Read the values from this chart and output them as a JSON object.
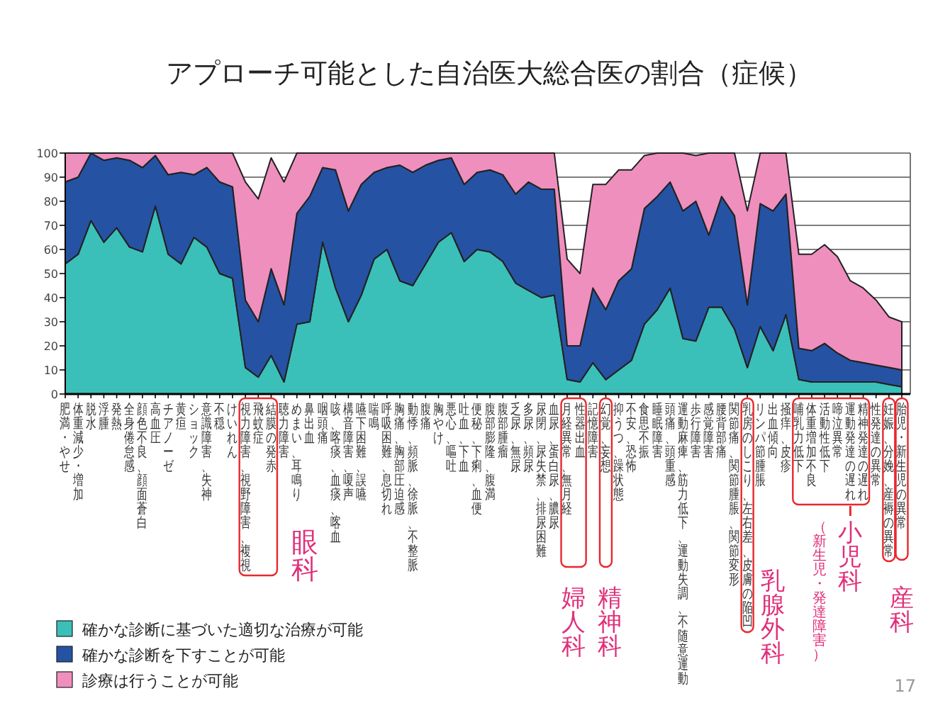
{
  "chart_data": {
    "type": "area",
    "title": "アプローチ可能とした自治医大総合医の割合（症候）",
    "stacked": true,
    "grid": "y",
    "legend": "bottom left",
    "ylim": [
      0,
      100
    ],
    "yticks": [
      0,
      10,
      20,
      30,
      40,
      50,
      60,
      70,
      80,
      90,
      100
    ],
    "categories": [
      "肥満・やせ",
      "体重減少・増加",
      "脱水",
      "浮腫",
      "発熱",
      "全身倦怠感",
      "顔色不良、顔面蒼白",
      "高血圧",
      "チアノーゼ",
      "黄疸",
      "ショック",
      "意識障害、失神",
      "不穏",
      "けいれん",
      "視力障害、視野障害、複視",
      "飛蚊症",
      "結膜の発赤",
      "聴力障害",
      "めまい、耳鳴り",
      "鼻出血",
      "咽頭痛",
      "咳、喀痰、血痰、喀血",
      "構音障害、嗄声",
      "嚥下困難、誤嚥",
      "喘鳴",
      "呼吸困難、息切れ",
      "胸痛、胸部圧迫感",
      "動悸、頻脈、徐脈、不整脈",
      "腹痛",
      "胸やけ",
      "悪心、嘔吐",
      "吐血、下血",
      "便秘、下痢、血便",
      "腹部膨隆、腹満",
      "腹部腫瘤",
      "乏尿、無尿",
      "多尿、頻尿",
      "尿閉、尿失禁、排尿困難",
      "血尿、蛋白尿、膿尿",
      "月経異常、無月経",
      "性器出血",
      "記憶障害",
      "幻覚、妄想",
      "抑うつ、躁状態",
      "不安、恐怖",
      "食思不振",
      "睡眠障害",
      "頭痛、頭重感",
      "運動麻痺、筋力低下、運動失調、不随意運動",
      "歩行障害",
      "感覚障害",
      "腰背部痛",
      "関節痛、関節腫脹、関節変形",
      "乳房のしこり、左右差、皮膚の陥凹",
      "リンパ節腫脹",
      "出血傾向",
      "掻痒、皮疹",
      "哺乳力低下",
      "体重増加不良",
      "活動性低下",
      "啼泣異常",
      "運動発達の遅れ",
      "精神発達の遅れ",
      "性発達の異常",
      "妊娠、分娩、産褥の異常",
      "胎児・新生児の異常"
    ],
    "series": [
      {
        "name": "確かな診断に基づいた適切な治療が可能",
        "color": "#3bbfb9",
        "values": [
          54,
          58,
          72,
          63,
          69,
          61,
          59,
          78,
          58,
          54,
          65,
          61,
          50,
          48,
          11,
          7,
          16,
          5,
          29,
          30,
          63,
          44,
          30,
          41,
          56,
          60,
          47,
          45,
          54,
          63,
          67,
          55,
          60,
          59,
          55,
          46,
          43,
          40,
          41,
          6,
          5,
          13,
          6,
          10,
          14,
          29,
          35,
          44,
          23,
          22,
          36,
          36,
          27,
          11,
          28,
          18,
          33,
          6,
          5,
          5,
          5,
          5,
          5,
          5,
          4,
          3
        ]
      },
      {
        "name": "確かな診断を下すことが可能",
        "color": "#2552a3",
        "values": [
          34,
          32,
          28,
          34,
          29,
          36,
          35,
          21,
          33,
          38,
          26,
          33,
          38,
          38,
          28,
          23,
          36,
          32,
          46,
          52,
          31,
          49,
          46,
          46,
          36,
          34,
          48,
          47,
          41,
          34,
          31,
          32,
          32,
          34,
          36,
          37,
          45,
          45,
          44,
          14,
          15,
          31,
          29,
          37,
          38,
          48,
          47,
          44,
          53,
          58,
          30,
          46,
          47,
          26,
          51,
          58,
          50,
          13,
          13,
          16,
          12,
          9,
          8,
          7,
          7,
          7
        ]
      },
      {
        "name": "診療は行うことが可能",
        "color": "#ef8fbd",
        "values": [
          12,
          10,
          0,
          3,
          2,
          3,
          6,
          1,
          9,
          8,
          9,
          6,
          12,
          14,
          49,
          51,
          46,
          51,
          25,
          18,
          6,
          7,
          24,
          13,
          8,
          6,
          5,
          8,
          5,
          3,
          2,
          13,
          8,
          7,
          9,
          17,
          12,
          15,
          15,
          36,
          30,
          43,
          52,
          46,
          41,
          22,
          18,
          12,
          24,
          19,
          34,
          18,
          26,
          39,
          21,
          24,
          17,
          39,
          40,
          41,
          40,
          33,
          31,
          27,
          21,
          20
        ]
      }
    ],
    "annotations": [
      "眼科",
      "婦人科",
      "精神科",
      "乳腺外科",
      "小児科",
      "（新生児・発達障害）",
      "産科",
      "17"
    ]
  }
}
